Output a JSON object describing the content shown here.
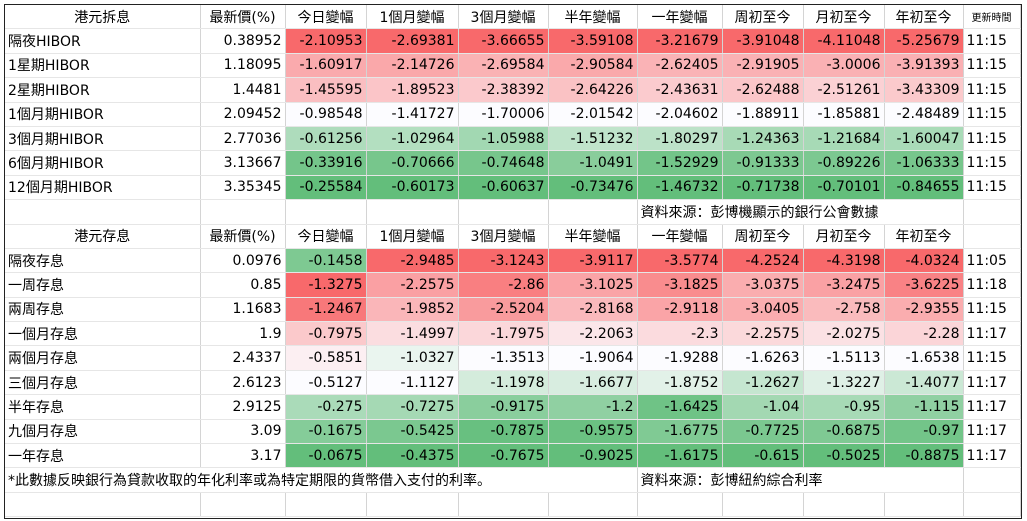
{
  "hibor": {
    "header": [
      "港元拆息",
      "最新價(%)",
      "今日變幅",
      "1個月變幅",
      "3個月變幅",
      "半年變幅",
      "一年變幅",
      "周初至今",
      "月初至今",
      "年初至今",
      "更新時間"
    ],
    "rows": [
      {
        "label": "隔夜HIBOR",
        "latest": 0.38952,
        "changes": [
          -2.10953,
          -2.69381,
          -3.66655,
          -3.59108,
          -3.21679,
          -3.91048,
          -4.11048,
          -5.25679
        ],
        "time": "11:15"
      },
      {
        "label": "1星期HIBOR",
        "latest": 1.18095,
        "changes": [
          -1.60917,
          -2.14726,
          -2.69584,
          -2.90584,
          -2.62405,
          -2.91905,
          -3.0006,
          -3.91393
        ],
        "time": "11:15"
      },
      {
        "label": "2星期HIBOR",
        "latest": 1.4481,
        "changes": [
          -1.45595,
          -1.89523,
          -2.38392,
          -2.64226,
          -2.43631,
          -2.62488,
          -2.51261,
          -3.43309
        ],
        "time": "11:15"
      },
      {
        "label": "1個月期HIBOR",
        "latest": 2.09452,
        "changes": [
          -0.98548,
          -1.41727,
          -1.70006,
          -2.01542,
          -2.04602,
          -1.88911,
          -1.85881,
          -2.48489
        ],
        "time": "11:15"
      },
      {
        "label": "3個月期HIBOR",
        "latest": 2.77036,
        "changes": [
          -0.61256,
          -1.02964,
          -1.05988,
          -1.51232,
          -1.80297,
          -1.24363,
          -1.21684,
          -1.60047
        ],
        "time": "11:15"
      },
      {
        "label": "6個月期HIBOR",
        "latest": 3.13667,
        "changes": [
          -0.33916,
          -0.70666,
          -0.74648,
          -1.0491,
          -1.52929,
          -0.91333,
          -0.89226,
          -1.06333
        ],
        "time": "11:15"
      },
      {
        "label": "12個月期HIBOR",
        "latest": 3.35345,
        "changes": [
          -0.25584,
          -0.60173,
          -0.60637,
          -0.73476,
          -1.46732,
          -0.71738,
          -0.70101,
          -0.84655
        ],
        "time": "11:15"
      }
    ],
    "source": "資料來源：彭博機顯示的銀行公會數據"
  },
  "deposit": {
    "header": [
      "港元存息",
      "最新價(%)",
      "今日變幅",
      "1個月變幅",
      "3個月變幅",
      "半年變幅",
      "一年變幅",
      "周初至今",
      "月初至今",
      "年初至今"
    ],
    "rows": [
      {
        "label": "隔夜存息",
        "latest": 0.0976,
        "changes": [
          -0.1458,
          -2.9485,
          -3.1243,
          -3.9117,
          -3.5774,
          -4.2524,
          -4.3198,
          -4.0324
        ],
        "time": "11:05"
      },
      {
        "label": "一周存息",
        "latest": 0.85,
        "changes": [
          -1.3275,
          -2.2575,
          -2.86,
          -3.1025,
          -3.1825,
          -3.0375,
          -3.2475,
          -3.6225
        ],
        "time": "11:18"
      },
      {
        "label": "兩周存息",
        "latest": 1.1683,
        "changes": [
          -1.2467,
          -1.9852,
          -2.5204,
          -2.8168,
          -2.9118,
          -3.0405,
          -2.758,
          -2.9355
        ],
        "time": "11:15"
      },
      {
        "label": "一個月存息",
        "latest": 1.9,
        "changes": [
          -0.7975,
          -1.4997,
          -1.7975,
          -2.2063,
          -2.3,
          -2.2575,
          -2.0275,
          -2.28
        ],
        "time": "11:17"
      },
      {
        "label": "兩個月存息",
        "latest": 2.4337,
        "changes": [
          -0.5851,
          -1.0327,
          -1.3513,
          -1.9064,
          -1.9288,
          -1.6263,
          -1.5113,
          -1.6538
        ],
        "time": "11:15"
      },
      {
        "label": "三個月存息",
        "latest": 2.6123,
        "changes": [
          -0.5127,
          -1.1127,
          -1.1978,
          -1.6677,
          -1.8752,
          -1.2627,
          -1.3227,
          -1.4077
        ],
        "time": "11:17"
      },
      {
        "label": "半年存息",
        "latest": 2.9125,
        "changes": [
          -0.275,
          -0.7275,
          -0.9175,
          -1.2,
          -1.6425,
          -1.04,
          -0.95,
          -1.115
        ],
        "time": "11:17"
      },
      {
        "label": "九個月存息",
        "latest": 3.09,
        "changes": [
          -0.1675,
          -0.5425,
          -0.7875,
          -0.9575,
          -1.6775,
          -0.7725,
          -0.6875,
          -0.97
        ],
        "time": "11:17"
      },
      {
        "label": "一年存息",
        "latest": 3.17,
        "changes": [
          -0.0675,
          -0.4375,
          -0.7675,
          -0.9025,
          -1.6175,
          -0.615,
          -0.5025,
          -0.8875
        ],
        "time": "11:17"
      }
    ],
    "note": "*此數據反映銀行為貸款收取的年化利率或為特定期限的貨幣借入支付的利率。",
    "source": "資料來源：彭博紐約綜合利率"
  }
}
